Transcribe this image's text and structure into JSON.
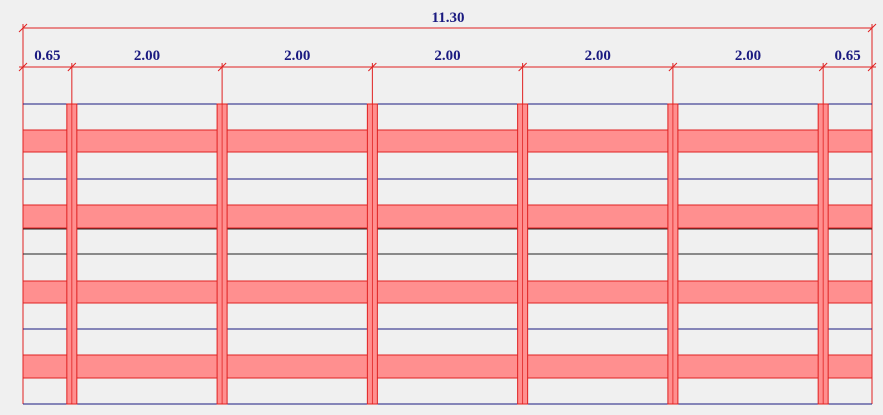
{
  "dimensions": {
    "total": "11.30",
    "segments": [
      "0.65",
      "2.00",
      "2.00",
      "2.00",
      "2.00",
      "2.00",
      "0.65"
    ]
  }
}
